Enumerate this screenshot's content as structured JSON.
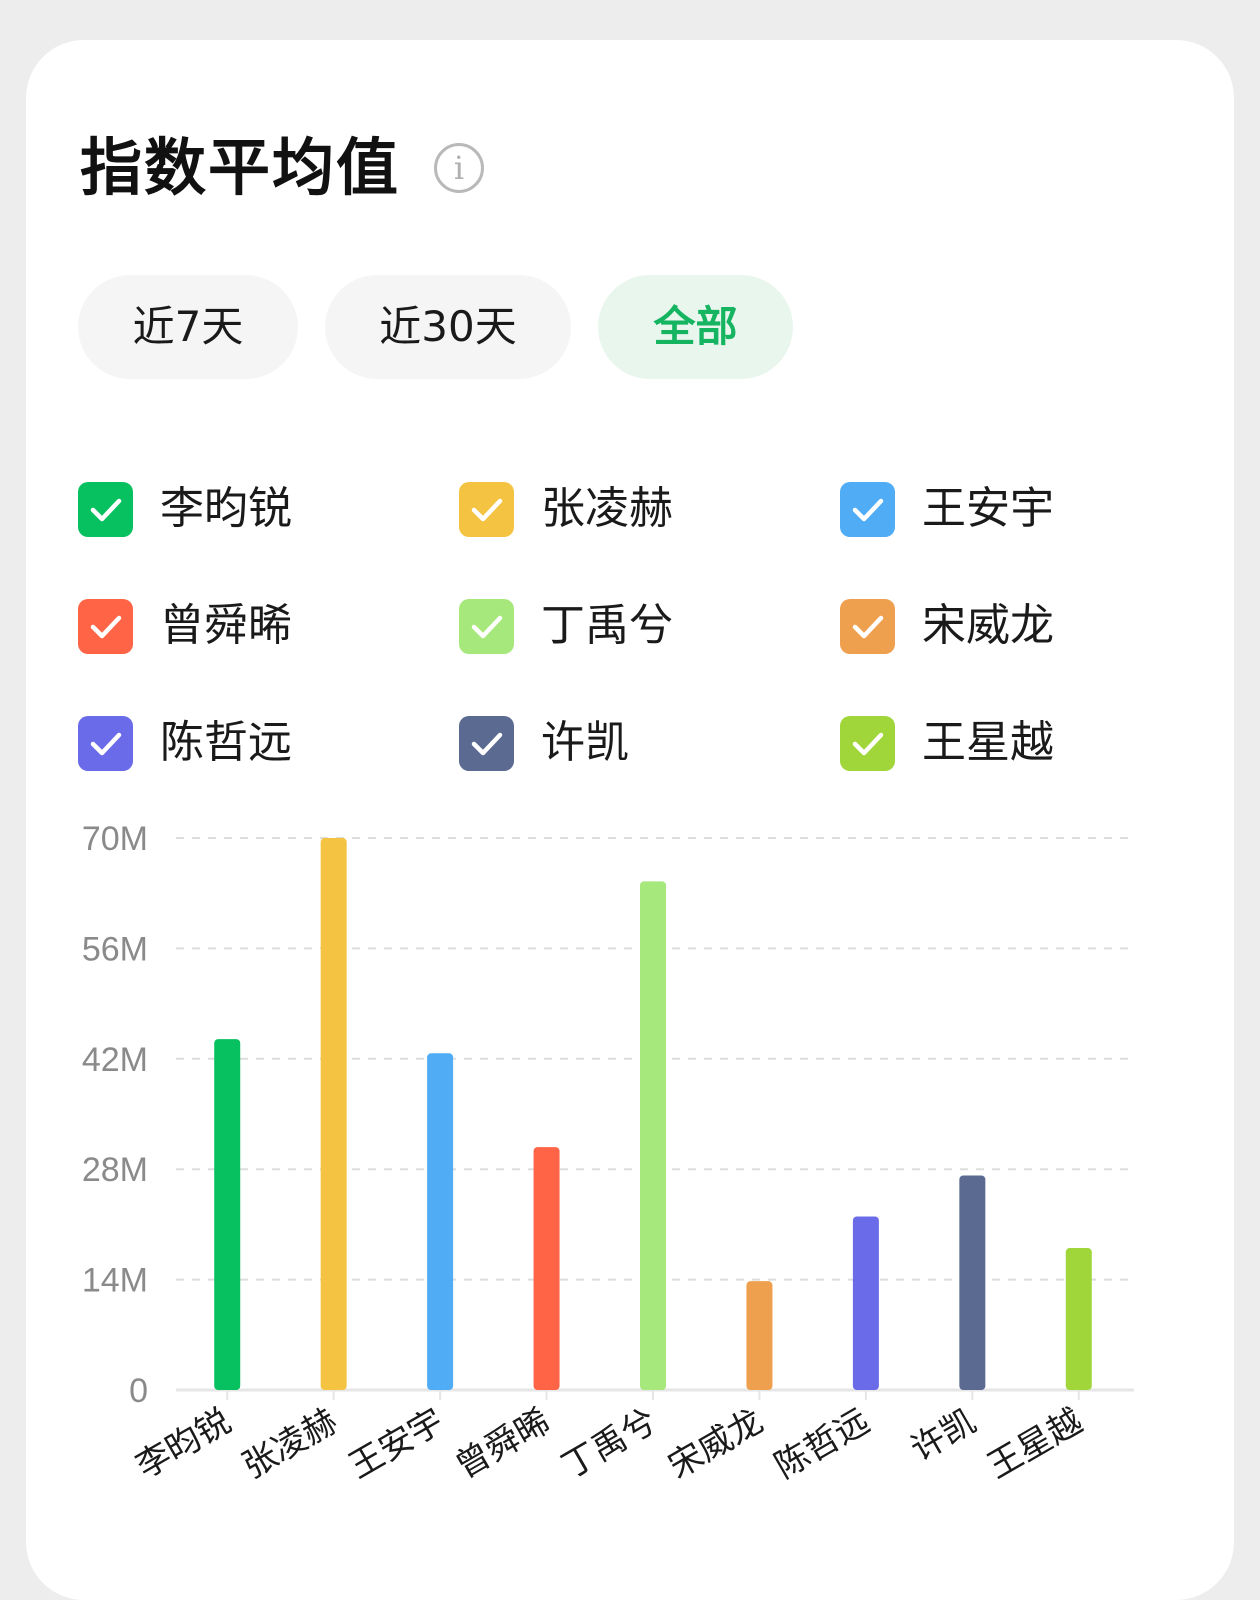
{
  "header": {
    "title": "指数平均值",
    "info_icon": "i"
  },
  "tabs": [
    {
      "label": "近7天",
      "active": false
    },
    {
      "label": "近30天",
      "active": false
    },
    {
      "label": "全部",
      "active": true
    }
  ],
  "colors": {
    "accent": "#14b461",
    "active_tab_bg": "#e9f6ed"
  },
  "legend": [
    {
      "label": "李昀锐",
      "color": "#07c160",
      "checked": true
    },
    {
      "label": "张凌赫",
      "color": "#f5c342",
      "checked": true
    },
    {
      "label": "王安宇",
      "color": "#4facf5",
      "checked": true
    },
    {
      "label": "曾舜晞",
      "color": "#ff6446",
      "checked": true
    },
    {
      "label": "丁禹兮",
      "color": "#a6e87c",
      "checked": true
    },
    {
      "label": "宋威龙",
      "color": "#eea04f",
      "checked": true
    },
    {
      "label": "陈哲远",
      "color": "#6a6be8",
      "checked": true
    },
    {
      "label": "许凯",
      "color": "#5b6a91",
      "checked": true
    },
    {
      "label": "王星越",
      "color": "#a0d63a",
      "checked": true
    }
  ],
  "chart_data": {
    "type": "bar",
    "categories": [
      "李昀锐",
      "张凌赫",
      "王安宇",
      "曾舜晞",
      "丁禹兮",
      "宋威龙",
      "陈哲远",
      "许凯",
      "王星越"
    ],
    "values": [
      44.5,
      70,
      42.7,
      30.8,
      64.5,
      13.8,
      22,
      27.2,
      18
    ],
    "colors": [
      "#07c160",
      "#f5c342",
      "#4facf5",
      "#ff6446",
      "#a6e87c",
      "#eea04f",
      "#6a6be8",
      "#5b6a91",
      "#a0d63a"
    ],
    "unit": "M",
    "ylim": [
      0,
      70
    ],
    "yticks": [
      "0",
      "14M",
      "28M",
      "42M",
      "56M",
      "70M"
    ],
    "grid": true,
    "xlabel": "",
    "ylabel": ""
  }
}
